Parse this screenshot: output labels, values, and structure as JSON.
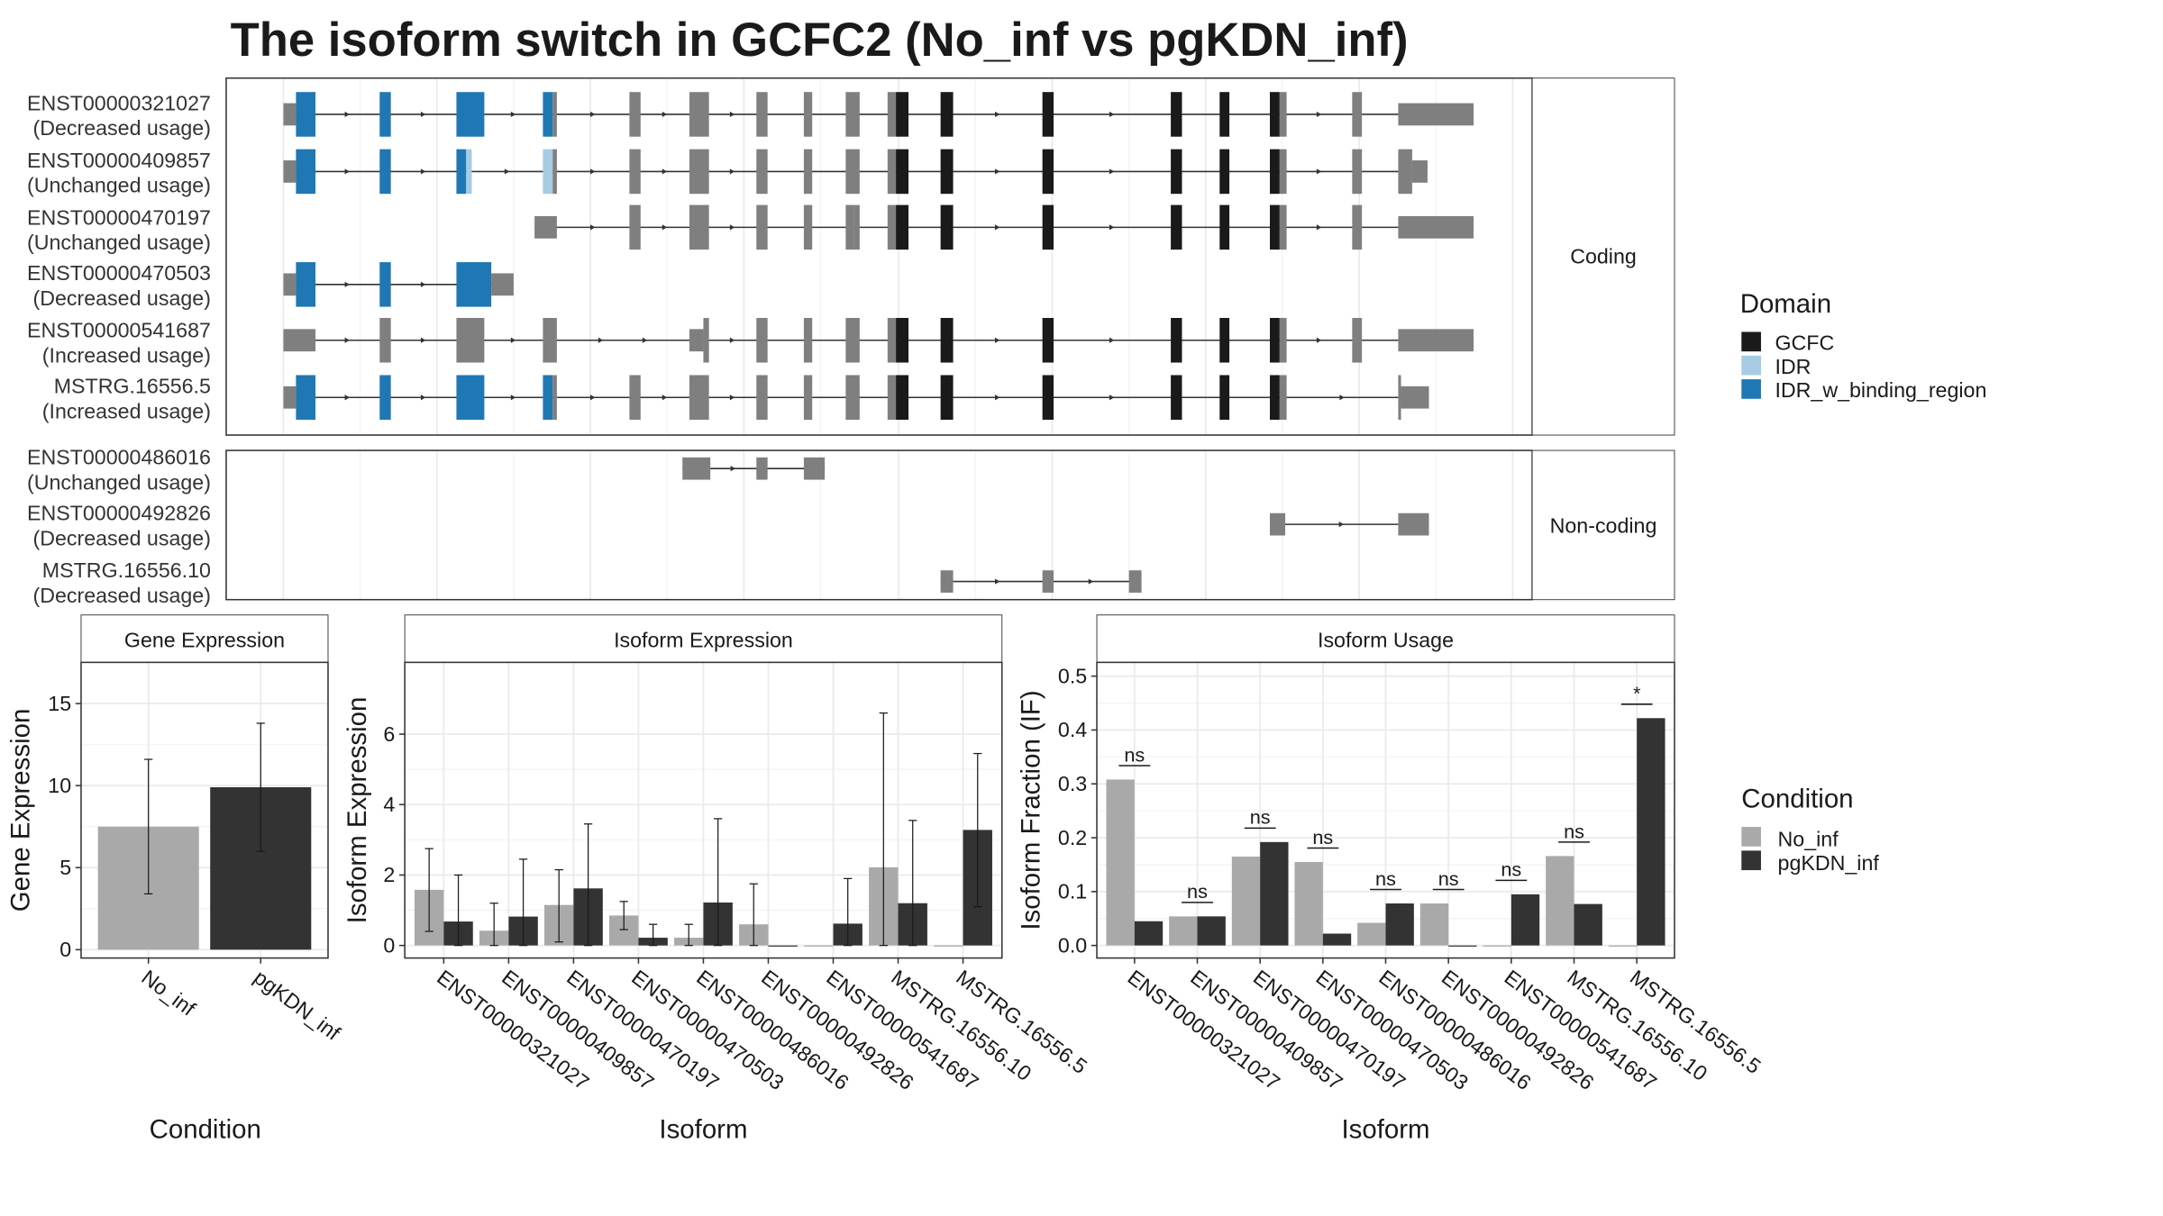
{
  "title": "The isoform switch in GCFC2 (No_inf vs pgKDN_inf)",
  "colors": {
    "no_inf": "#a9a9a9",
    "pgkdn_inf": "#333333",
    "exon": "#7f7f7f",
    "gcfc": "#1a1a1a",
    "idr": "#a6cbe3",
    "idr_binding": "#1f78b4",
    "grid": "#ebebeb"
  },
  "structure": {
    "coding_strip_label": "Coding",
    "noncoding_strip_label": "Non-coding",
    "coding_isoforms": [
      {
        "id": "ENST00000321027",
        "usage": "(Decreased usage)"
      },
      {
        "id": "ENST00000409857",
        "usage": "(Unchanged usage)"
      },
      {
        "id": "ENST00000470197",
        "usage": "(Unchanged usage)"
      },
      {
        "id": "ENST00000470503",
        "usage": "(Decreased usage)"
      },
      {
        "id": "ENST00000541687",
        "usage": "(Increased usage)"
      },
      {
        "id": "MSTRG.16556.5",
        "usage": "(Increased usage)"
      }
    ],
    "noncoding_isoforms": [
      {
        "id": "ENST00000486016",
        "usage": "(Unchanged usage)"
      },
      {
        "id": "ENST00000492826",
        "usage": "(Decreased usage)"
      },
      {
        "id": "MSTRG.16556.10",
        "usage": "(Decreased usage)"
      }
    ]
  },
  "legends": {
    "domain": {
      "title": "Domain",
      "items": [
        {
          "label": "GCFC",
          "color": "#1a1a1a"
        },
        {
          "label": "IDR",
          "color": "#a6cbe3"
        },
        {
          "label": "IDR_w_binding_region",
          "color": "#1f78b4"
        }
      ]
    },
    "condition": {
      "title": "Condition",
      "items": [
        {
          "label": "No_inf",
          "color": "#a9a9a9"
        },
        {
          "label": "pgKDN_inf",
          "color": "#333333"
        }
      ]
    }
  },
  "chart_data": [
    {
      "type": "bar",
      "title": "Gene Expression",
      "xlabel": "Condition",
      "ylabel": "Gene Expression",
      "categories": [
        "No_inf",
        "pgKDN_inf"
      ],
      "values": [
        7.5,
        9.9
      ],
      "error_low": [
        3.4,
        6.0
      ],
      "error_high": [
        11.6,
        13.8
      ],
      "yticks": [
        0,
        5,
        10,
        15
      ],
      "ylim": [
        0,
        17
      ]
    },
    {
      "type": "bar",
      "title": "Isoform Expression",
      "xlabel": "Isoform",
      "ylabel": "Isoform Expression",
      "categories": [
        "ENST00000321027",
        "ENST00000409857",
        "ENST00000470197",
        "ENST00000470503",
        "ENST00000486016",
        "ENST00000492826",
        "ENST00000541687",
        "MSTRG.16556.10",
        "MSTRG.16556.5"
      ],
      "series": [
        {
          "name": "No_inf",
          "values": [
            1.58,
            0.42,
            1.15,
            0.85,
            0.22,
            0.6,
            0.0,
            2.22,
            0.0
          ],
          "error_low": [
            0.4,
            0.0,
            0.1,
            0.45,
            0.0,
            0.0,
            0.0,
            0.0,
            0.0
          ],
          "error_high": [
            2.75,
            1.2,
            2.15,
            1.25,
            0.6,
            1.75,
            0.0,
            6.6,
            0.0
          ]
        },
        {
          "name": "pgKDN_inf",
          "values": [
            0.68,
            0.82,
            1.62,
            0.22,
            1.22,
            0.0,
            0.62,
            1.2,
            3.28
          ],
          "error_low": [
            0.0,
            0.0,
            0.0,
            0.0,
            0.0,
            0.0,
            0.0,
            0.0,
            1.1
          ],
          "error_high": [
            2.0,
            2.45,
            3.45,
            0.6,
            3.6,
            0.0,
            1.9,
            3.55,
            5.45
          ]
        }
      ],
      "yticks": [
        0,
        2,
        4,
        6
      ],
      "ylim": [
        0,
        7.8
      ]
    },
    {
      "type": "bar",
      "title": "Isoform Usage",
      "xlabel": "Isoform",
      "ylabel": "Isoform Fraction (IF)",
      "categories": [
        "ENST00000321027",
        "ENST00000409857",
        "ENST00000470197",
        "ENST00000470503",
        "ENST00000486016",
        "ENST00000492826",
        "ENST00000541687",
        "MSTRG.16556.10",
        "MSTRG.16556.5"
      ],
      "series": [
        {
          "name": "No_inf",
          "values": [
            0.308,
            0.054,
            0.165,
            0.155,
            0.042,
            0.078,
            0.0,
            0.166,
            0.0
          ]
        },
        {
          "name": "pgKDN_inf",
          "values": [
            0.045,
            0.054,
            0.192,
            0.022,
            0.078,
            0.0,
            0.095,
            0.077,
            0.422
          ]
        }
      ],
      "significance": [
        "ns",
        "ns",
        "ns",
        "ns",
        "ns",
        "ns",
        "ns",
        "ns",
        "*"
      ],
      "yticks": [
        0.0,
        0.1,
        0.2,
        0.3,
        0.4,
        0.5
      ],
      "ylim": [
        0,
        0.51
      ]
    }
  ]
}
